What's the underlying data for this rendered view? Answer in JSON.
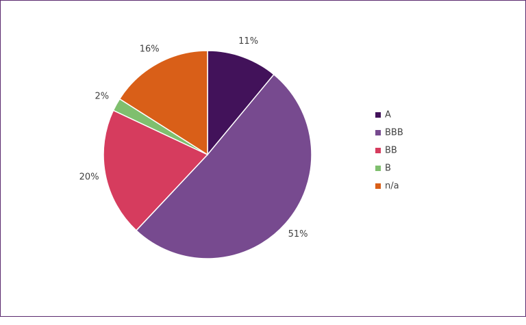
{
  "chart_data": {
    "type": "pie",
    "categories": [
      "A",
      "BBB",
      "BB",
      "B",
      "n/a"
    ],
    "values": [
      11,
      51,
      20,
      2,
      16
    ],
    "value_labels": [
      "11%",
      "51%",
      "20%",
      "2%",
      "16%"
    ],
    "colors": [
      "#42125a",
      "#774a8f",
      "#d63c5e",
      "#7fbf6e",
      "#d95f18"
    ],
    "legend": "right"
  }
}
